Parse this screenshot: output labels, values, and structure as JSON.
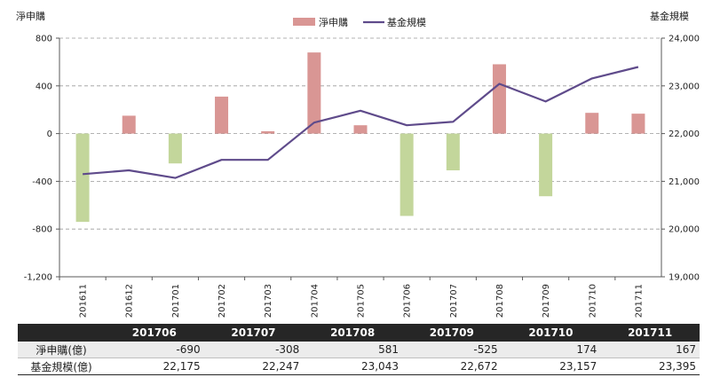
{
  "chart_data": {
    "type": "bar+line",
    "categories": [
      "201611",
      "201612",
      "201701",
      "201702",
      "201703",
      "201704",
      "201705",
      "201706",
      "201707",
      "201708",
      "201709",
      "201710",
      "201711"
    ],
    "series": [
      {
        "name": "淨申購",
        "type": "bar",
        "axis": "left",
        "values": [
          -740,
          150,
          -250,
          310,
          20,
          680,
          70,
          -690,
          -308,
          581,
          -525,
          174,
          167
        ],
        "color_positive": "#d99694",
        "color_negative": "#c3d69b"
      },
      {
        "name": "基金規模",
        "type": "line",
        "axis": "right",
        "values": [
          21150,
          21230,
          21070,
          21450,
          21450,
          22230,
          22480,
          22175,
          22247,
          23043,
          22672,
          23157,
          23395
        ],
        "color": "#5f4b8b"
      }
    ],
    "left_axis": {
      "title": "淨申購",
      "min": -1200,
      "max": 800,
      "ticks": [
        800,
        400,
        0,
        -400,
        -800,
        -1200
      ],
      "tick_labels": [
        "800",
        "400",
        "0",
        "-400",
        "-800",
        "-1,200"
      ]
    },
    "right_axis": {
      "title": "基金規模",
      "min": 19000,
      "max": 24000,
      "ticks": [
        24000,
        23000,
        22000,
        21000,
        20000,
        19000
      ],
      "tick_labels": [
        "24,000",
        "23,000",
        "22,000",
        "21,000",
        "20,000",
        "19,000"
      ]
    },
    "grid": "horizontal-dashed",
    "legend_position": "top-center",
    "legend": [
      {
        "label": "淨申購",
        "swatch": "bar"
      },
      {
        "label": "基金規模",
        "swatch": "line"
      }
    ]
  },
  "table": {
    "headers": [
      "",
      "201706",
      "201707",
      "201708",
      "201709",
      "201710",
      "201711"
    ],
    "rows": [
      {
        "label": "淨申購(億)",
        "cells": [
          "-690",
          "-308",
          "581",
          "-525",
          "174",
          "167"
        ]
      },
      {
        "label": "基金規模(億)",
        "cells": [
          "22,175",
          "22,247",
          "23,043",
          "22,672",
          "23,157",
          "23,395"
        ]
      }
    ]
  },
  "colors": {
    "bar_positive": "#d99694",
    "bar_negative": "#c3d69b",
    "line": "#5f4b8b",
    "table_header": "#262626"
  }
}
